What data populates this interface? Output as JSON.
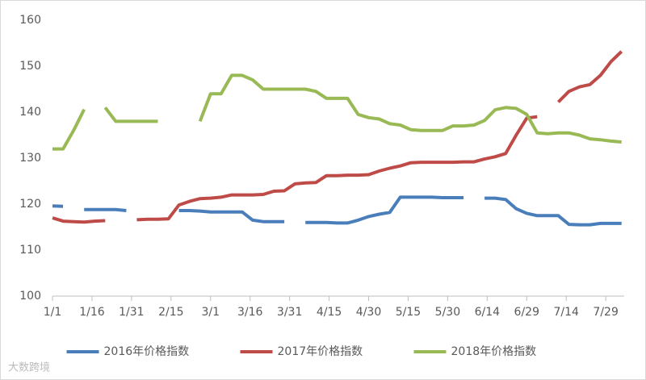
{
  "chart_data": {
    "type": "line",
    "x": [
      0,
      4,
      8,
      12,
      16,
      20,
      24,
      28,
      32,
      36,
      40,
      44,
      48,
      52,
      56,
      60,
      64,
      68,
      72,
      76,
      80,
      84,
      88,
      92,
      96,
      100,
      104,
      108,
      112,
      116,
      120,
      124,
      128,
      132,
      136,
      140,
      144,
      148,
      152,
      156,
      160,
      164,
      168,
      172,
      176,
      180,
      184,
      188,
      192,
      196,
      200,
      204,
      208,
      212,
      216
    ],
    "series": [
      {
        "name": "2016年价格指数",
        "color": "#4a7ebb",
        "values": [
          119.6,
          119.5,
          null,
          118.8,
          118.8,
          118.8,
          118.8,
          118.6,
          null,
          null,
          null,
          null,
          118.6,
          118.6,
          118.5,
          118.3,
          118.3,
          118.3,
          118.3,
          116.5,
          116.2,
          116.2,
          116.2,
          null,
          116,
          116,
          116,
          115.9,
          115.9,
          116.5,
          117.3,
          117.8,
          118.2,
          121.5,
          121.5,
          121.5,
          121.5,
          121.4,
          121.4,
          121.4,
          null,
          121.3,
          121.3,
          121,
          119,
          118,
          117.5,
          117.5,
          117.5,
          115.6,
          115.5,
          115.5,
          115.8,
          115.8,
          115.8
        ]
      },
      {
        "name": "2017年价格指数",
        "color": "#be4b48",
        "values": [
          117,
          116.3,
          116.2,
          116.1,
          116.3,
          116.4,
          null,
          null,
          116.6,
          116.7,
          116.7,
          116.8,
          119.8,
          120.6,
          121.2,
          121.3,
          121.5,
          122,
          122,
          122,
          122.1,
          122.8,
          122.9,
          124.4,
          124.6,
          124.7,
          126.2,
          126.2,
          126.3,
          126.3,
          126.4,
          127.2,
          127.8,
          128.3,
          129,
          129.1,
          129.1,
          129.1,
          129.1,
          129.2,
          129.2,
          129.8,
          130.3,
          131,
          135,
          138.7,
          139,
          null,
          142.2,
          144.5,
          145.5,
          146,
          148,
          151,
          153.2
        ]
      },
      {
        "name": "2018年价格指数",
        "color": "#98b954",
        "values": [
          132,
          132,
          136,
          140.6,
          null,
          141,
          138,
          138,
          138,
          138,
          138,
          null,
          null,
          null,
          138,
          144,
          144,
          148,
          148,
          147,
          145,
          145,
          145,
          145,
          145,
          144.5,
          143,
          143,
          143,
          139.5,
          138.8,
          138.5,
          137.5,
          137.2,
          136.2,
          136,
          136,
          136,
          137,
          137,
          137.2,
          138.2,
          140.5,
          141,
          140.8,
          139.5,
          135.5,
          135.3,
          135.5,
          135.5,
          135,
          134.2,
          134,
          133.7,
          133.5
        ]
      }
    ],
    "xlim": [
      0,
      217
    ],
    "xticks": [
      {
        "value": 0,
        "label": "1/1"
      },
      {
        "value": 15,
        "label": "1/16"
      },
      {
        "value": 30,
        "label": "1/31"
      },
      {
        "value": 45,
        "label": "2/15"
      },
      {
        "value": 60,
        "label": "3/1"
      },
      {
        "value": 75,
        "label": "3/16"
      },
      {
        "value": 90,
        "label": "3/31"
      },
      {
        "value": 105,
        "label": "4/15"
      },
      {
        "value": 120,
        "label": "4/30"
      },
      {
        "value": 135,
        "label": "5/15"
      },
      {
        "value": 150,
        "label": "5/30"
      },
      {
        "value": 165,
        "label": "6/14"
      },
      {
        "value": 180,
        "label": "6/29"
      },
      {
        "value": 195,
        "label": "7/14"
      },
      {
        "value": 210,
        "label": "7/29"
      }
    ],
    "ylim": [
      100,
      160
    ],
    "yticks": [
      100,
      110,
      120,
      130,
      140,
      150,
      160
    ],
    "grid": false,
    "legend": "bottom",
    "watermark": "大数跨境"
  }
}
